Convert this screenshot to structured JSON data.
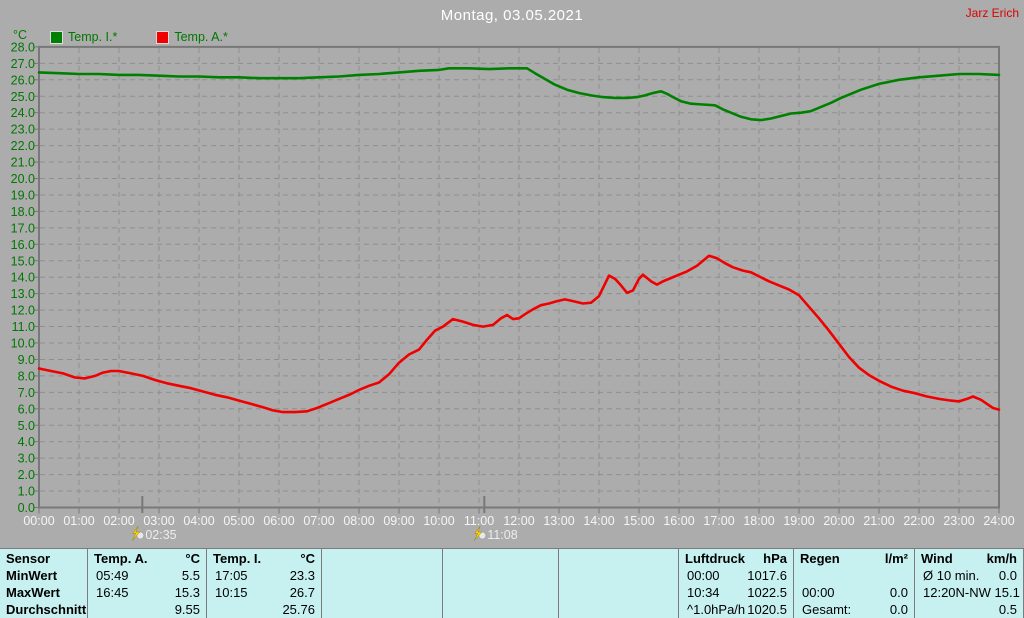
{
  "header": {
    "user": "Jarz Erich"
  },
  "chart_data": {
    "type": "line",
    "title": "Montag, 03.05.2021",
    "ylabel": "°C",
    "xlabel": "",
    "ylim": [
      0,
      28
    ],
    "xlim": [
      0,
      24
    ],
    "grid": true,
    "legend_position": "top-left",
    "y_tick_labels": [
      "0.0",
      "1.0",
      "2.0",
      "3.0",
      "4.0",
      "5.0",
      "6.0",
      "7.0",
      "8.0",
      "9.0",
      "10.0",
      "11.0",
      "12.0",
      "13.0",
      "14.0",
      "15.0",
      "16.0",
      "17.0",
      "18.0",
      "19.0",
      "20.0",
      "21.0",
      "22.0",
      "23.0",
      "24.0",
      "25.0",
      "26.0",
      "27.0",
      "28.0"
    ],
    "x_tick_labels": [
      "00:00",
      "01:00",
      "02:00",
      "03:00",
      "04:00",
      "05:00",
      "06:00",
      "07:00",
      "08:00",
      "09:00",
      "10:00",
      "11:00",
      "12:00",
      "13:00",
      "14:00",
      "15:00",
      "16:00",
      "17:00",
      "18:00",
      "19:00",
      "20:00",
      "21:00",
      "22:00",
      "23:00",
      "24:00"
    ],
    "events": [
      {
        "time": "02:35",
        "hour": 2.583
      },
      {
        "time": "11:08",
        "hour": 11.133
      }
    ],
    "series": [
      {
        "name": "Temp. I.*",
        "color": "#008000",
        "points": [
          [
            0,
            26.45
          ],
          [
            0.5,
            26.4
          ],
          [
            1,
            26.35
          ],
          [
            1.5,
            26.35
          ],
          [
            2,
            26.3
          ],
          [
            2.5,
            26.3
          ],
          [
            3,
            26.25
          ],
          [
            3.5,
            26.2
          ],
          [
            4,
            26.2
          ],
          [
            4.5,
            26.15
          ],
          [
            5,
            26.15
          ],
          [
            5.5,
            26.1
          ],
          [
            6,
            26.1
          ],
          [
            6.5,
            26.1
          ],
          [
            7,
            26.15
          ],
          [
            7.5,
            26.2
          ],
          [
            8,
            26.3
          ],
          [
            8.5,
            26.35
          ],
          [
            9,
            26.45
          ],
          [
            9.5,
            26.55
          ],
          [
            10,
            26.6
          ],
          [
            10.25,
            26.7
          ],
          [
            10.75,
            26.7
          ],
          [
            11.25,
            26.65
          ],
          [
            11.75,
            26.7
          ],
          [
            12.2,
            26.7
          ],
          [
            12.4,
            26.4
          ],
          [
            12.65,
            26.05
          ],
          [
            12.9,
            25.7
          ],
          [
            13.2,
            25.4
          ],
          [
            13.5,
            25.2
          ],
          [
            13.8,
            25.05
          ],
          [
            14.1,
            24.95
          ],
          [
            14.4,
            24.9
          ],
          [
            14.7,
            24.9
          ],
          [
            14.95,
            24.95
          ],
          [
            15.15,
            25.05
          ],
          [
            15.35,
            25.2
          ],
          [
            15.55,
            25.3
          ],
          [
            15.7,
            25.15
          ],
          [
            15.85,
            24.95
          ],
          [
            16.05,
            24.7
          ],
          [
            16.3,
            24.55
          ],
          [
            16.6,
            24.5
          ],
          [
            16.9,
            24.45
          ],
          [
            17.1,
            24.2
          ],
          [
            17.3,
            24.0
          ],
          [
            17.55,
            23.75
          ],
          [
            17.8,
            23.6
          ],
          [
            18.05,
            23.55
          ],
          [
            18.3,
            23.65
          ],
          [
            18.55,
            23.8
          ],
          [
            18.8,
            23.95
          ],
          [
            19.05,
            24.0
          ],
          [
            19.3,
            24.1
          ],
          [
            19.55,
            24.35
          ],
          [
            19.8,
            24.6
          ],
          [
            20.05,
            24.9
          ],
          [
            20.3,
            25.15
          ],
          [
            20.55,
            25.4
          ],
          [
            21.0,
            25.75
          ],
          [
            21.5,
            26.0
          ],
          [
            22.0,
            26.15
          ],
          [
            22.5,
            26.25
          ],
          [
            23.0,
            26.35
          ],
          [
            23.5,
            26.35
          ],
          [
            24,
            26.3
          ]
        ]
      },
      {
        "name": "Temp. A.*",
        "color": "#f00000",
        "points": [
          [
            0,
            8.45
          ],
          [
            0.3,
            8.3
          ],
          [
            0.6,
            8.15
          ],
          [
            0.9,
            7.9
          ],
          [
            1.15,
            7.85
          ],
          [
            1.4,
            8.0
          ],
          [
            1.6,
            8.2
          ],
          [
            1.8,
            8.3
          ],
          [
            2.0,
            8.3
          ],
          [
            2.3,
            8.15
          ],
          [
            2.6,
            8.0
          ],
          [
            2.9,
            7.75
          ],
          [
            3.2,
            7.55
          ],
          [
            3.5,
            7.4
          ],
          [
            3.8,
            7.25
          ],
          [
            4.1,
            7.05
          ],
          [
            4.4,
            6.85
          ],
          [
            4.7,
            6.7
          ],
          [
            5.0,
            6.5
          ],
          [
            5.3,
            6.3
          ],
          [
            5.6,
            6.1
          ],
          [
            5.85,
            5.9
          ],
          [
            6.1,
            5.8
          ],
          [
            6.4,
            5.8
          ],
          [
            6.7,
            5.85
          ],
          [
            6.95,
            6.05
          ],
          [
            7.2,
            6.3
          ],
          [
            7.5,
            6.6
          ],
          [
            7.8,
            6.9
          ],
          [
            8.0,
            7.15
          ],
          [
            8.25,
            7.4
          ],
          [
            8.5,
            7.6
          ],
          [
            8.75,
            8.1
          ],
          [
            9.0,
            8.8
          ],
          [
            9.25,
            9.3
          ],
          [
            9.5,
            9.6
          ],
          [
            9.7,
            10.2
          ],
          [
            9.9,
            10.75
          ],
          [
            10.1,
            11.0
          ],
          [
            10.35,
            11.45
          ],
          [
            10.6,
            11.3
          ],
          [
            10.85,
            11.1
          ],
          [
            11.1,
            11.0
          ],
          [
            11.35,
            11.1
          ],
          [
            11.55,
            11.5
          ],
          [
            11.7,
            11.7
          ],
          [
            11.85,
            11.45
          ],
          [
            12.0,
            11.5
          ],
          [
            12.15,
            11.75
          ],
          [
            12.35,
            12.05
          ],
          [
            12.55,
            12.3
          ],
          [
            12.75,
            12.4
          ],
          [
            12.95,
            12.55
          ],
          [
            13.15,
            12.65
          ],
          [
            13.35,
            12.55
          ],
          [
            13.6,
            12.4
          ],
          [
            13.8,
            12.45
          ],
          [
            14.0,
            12.85
          ],
          [
            14.15,
            13.6
          ],
          [
            14.25,
            14.1
          ],
          [
            14.4,
            13.9
          ],
          [
            14.55,
            13.5
          ],
          [
            14.7,
            13.05
          ],
          [
            14.85,
            13.2
          ],
          [
            15.0,
            13.9
          ],
          [
            15.1,
            14.15
          ],
          [
            15.3,
            13.75
          ],
          [
            15.45,
            13.55
          ],
          [
            15.6,
            13.75
          ],
          [
            15.8,
            13.95
          ],
          [
            16.0,
            14.15
          ],
          [
            16.2,
            14.35
          ],
          [
            16.45,
            14.7
          ],
          [
            16.75,
            15.3
          ],
          [
            16.95,
            15.15
          ],
          [
            17.15,
            14.85
          ],
          [
            17.35,
            14.6
          ],
          [
            17.6,
            14.4
          ],
          [
            17.8,
            14.3
          ],
          [
            18.0,
            14.05
          ],
          [
            18.25,
            13.75
          ],
          [
            18.5,
            13.5
          ],
          [
            18.75,
            13.25
          ],
          [
            19.0,
            12.9
          ],
          [
            19.25,
            12.2
          ],
          [
            19.5,
            11.5
          ],
          [
            19.75,
            10.75
          ],
          [
            20.0,
            9.95
          ],
          [
            20.25,
            9.15
          ],
          [
            20.5,
            8.5
          ],
          [
            20.75,
            8.05
          ],
          [
            21.0,
            7.7
          ],
          [
            21.3,
            7.35
          ],
          [
            21.6,
            7.1
          ],
          [
            21.9,
            6.95
          ],
          [
            22.2,
            6.75
          ],
          [
            22.5,
            6.6
          ],
          [
            22.8,
            6.5
          ],
          [
            23.0,
            6.45
          ],
          [
            23.2,
            6.6
          ],
          [
            23.35,
            6.75
          ],
          [
            23.55,
            6.55
          ],
          [
            23.7,
            6.3
          ],
          [
            23.85,
            6.05
          ],
          [
            24,
            5.95
          ]
        ]
      }
    ]
  },
  "table": {
    "row_labels": [
      "Sensor",
      "MinWert",
      "MaxWert",
      "Durchschnitt"
    ],
    "columns": [
      {
        "name": "temp-a",
        "header": "Temp. A.",
        "unit": "°C",
        "rows": [
          [
            "05:49",
            "5.5"
          ],
          [
            "16:45",
            "15.3"
          ],
          [
            "",
            "9.55"
          ]
        ]
      },
      {
        "name": "temp-i",
        "header": "Temp. I.",
        "unit": "°C",
        "rows": [
          [
            "17:05",
            "23.3"
          ],
          [
            "10:15",
            "26.7"
          ],
          [
            "",
            "25.76"
          ]
        ]
      },
      {
        "name": "empty-1",
        "header": "",
        "unit": "",
        "rows": [
          [
            "",
            ""
          ],
          [
            "",
            ""
          ],
          [
            "",
            ""
          ]
        ]
      },
      {
        "name": "empty-2",
        "header": "",
        "unit": "",
        "rows": [
          [
            "",
            ""
          ],
          [
            "",
            ""
          ],
          [
            "",
            ""
          ]
        ]
      },
      {
        "name": "empty-3",
        "header": "",
        "unit": "",
        "rows": [
          [
            "",
            ""
          ],
          [
            "",
            ""
          ],
          [
            "",
            ""
          ]
        ]
      },
      {
        "name": "luftdruck",
        "header": "Luftdruck",
        "unit": "hPa",
        "rows": [
          [
            "00:00",
            "1017.6"
          ],
          [
            "10:34",
            "1022.5"
          ],
          [
            "^1.0hPa/h",
            "1020.5"
          ]
        ]
      },
      {
        "name": "regen",
        "header": "Regen",
        "unit": "l/m²",
        "rows": [
          [
            "",
            ""
          ],
          [
            "00:00",
            "0.0"
          ],
          [
            "Gesamt:",
            "0.0"
          ]
        ]
      },
      {
        "name": "wind",
        "header": "Wind",
        "unit": "km/h",
        "rows": [
          [
            "Ø 10 min.",
            "0.0"
          ],
          [
            "12:20",
            "N-NW 15.1"
          ],
          [
            "",
            "0.5"
          ]
        ]
      }
    ]
  }
}
